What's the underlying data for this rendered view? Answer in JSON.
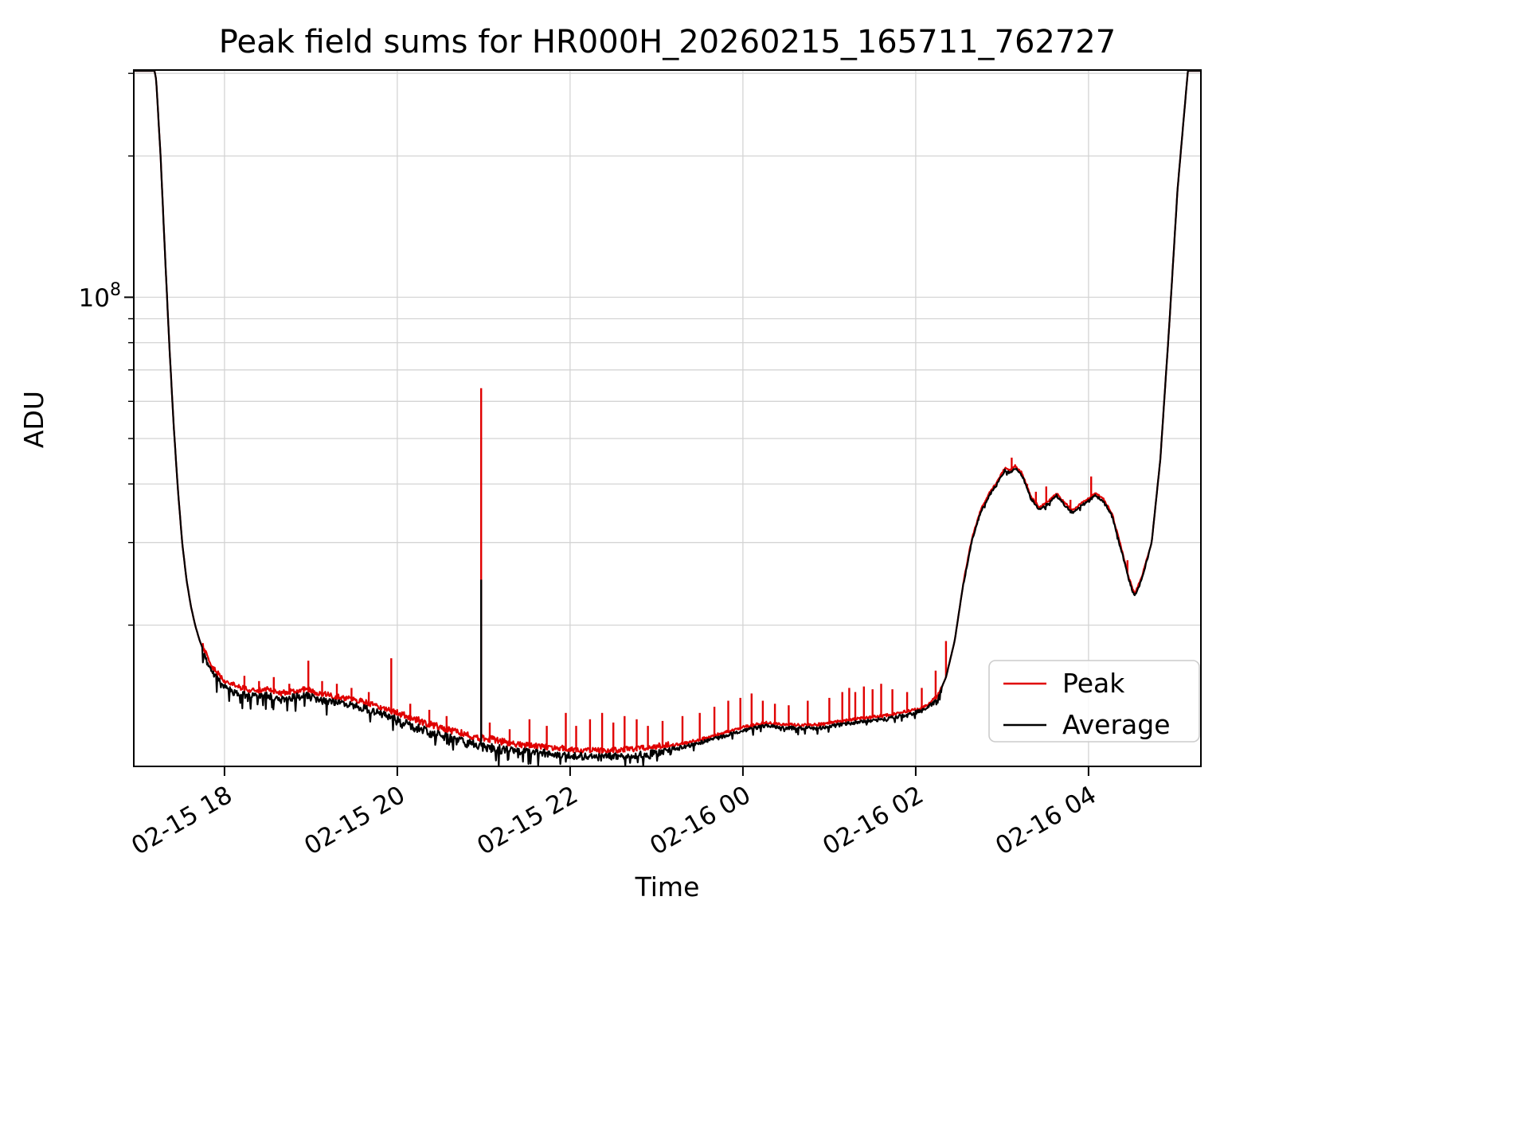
{
  "chart_data": {
    "type": "line",
    "title": "Peak field sums for HR000H_20260215_165711_762727",
    "xlabel": "Time",
    "ylabel": "ADU",
    "yscale": "log",
    "ylim": [
      10000000.0,
      305000000.0
    ],
    "t_range": [
      0,
      12.35
    ],
    "ytick": {
      "base": "10",
      "exp": "8",
      "value": 100000000.0
    },
    "xticks": [
      {
        "t": 1.05,
        "label": "02-15 18"
      },
      {
        "t": 3.05,
        "label": "02-15 20"
      },
      {
        "t": 5.05,
        "label": "02-15 22"
      },
      {
        "t": 7.05,
        "label": "02-16 00"
      },
      {
        "t": 9.05,
        "label": "02-16 02"
      },
      {
        "t": 11.05,
        "label": "02-16 04"
      }
    ],
    "y_gridlines_minor": [
      20000000.0,
      30000000.0,
      40000000.0,
      50000000.0,
      60000000.0,
      70000000.0,
      80000000.0,
      90000000.0,
      200000000.0,
      300000000.0
    ],
    "y_gridlines_major": [
      100000000.0
    ],
    "legend_position": "lower right",
    "grid": true,
    "series": [
      {
        "name": "Peak",
        "color": "#e00000"
      },
      {
        "name": "Average",
        "color": "#000000"
      }
    ],
    "average_keypoints": [
      [
        0.0,
        340000000.0
      ],
      [
        0.2,
        335000000.0
      ],
      [
        0.26,
        290000000.0
      ],
      [
        0.31,
        200000000.0
      ],
      [
        0.36,
        125000000.0
      ],
      [
        0.41,
        80000000.0
      ],
      [
        0.46,
        54000000.0
      ],
      [
        0.51,
        39000000.0
      ],
      [
        0.56,
        30000000.0
      ],
      [
        0.61,
        25000000.0
      ],
      [
        0.66,
        22000000.0
      ],
      [
        0.71,
        20000000.0
      ],
      [
        0.76,
        18600000.0
      ],
      [
        0.82,
        17400000.0
      ],
      [
        0.9,
        16200000.0
      ],
      [
        1.0,
        15300000.0
      ],
      [
        1.1,
        14800000.0
      ],
      [
        1.25,
        14500000.0
      ],
      [
        1.4,
        14300000.0
      ],
      [
        1.55,
        14400000.0
      ],
      [
        1.7,
        14100000.0
      ],
      [
        1.85,
        14300000.0
      ],
      [
        2.0,
        14400000.0
      ],
      [
        2.15,
        14100000.0
      ],
      [
        2.35,
        13900000.0
      ],
      [
        2.55,
        13700000.0
      ],
      [
        2.75,
        13400000.0
      ],
      [
        2.95,
        13000000.0
      ],
      [
        3.15,
        12600000.0
      ],
      [
        3.35,
        12200000.0
      ],
      [
        3.55,
        11900000.0
      ],
      [
        3.75,
        11600000.0
      ],
      [
        3.95,
        11350000.0
      ],
      [
        4.15,
        11200000.0
      ],
      [
        4.4,
        11000000.0
      ],
      [
        4.65,
        10900000.0
      ],
      [
        4.9,
        10800000.0
      ],
      [
        5.15,
        10700000.0
      ],
      [
        5.4,
        10650000.0
      ],
      [
        5.65,
        10700000.0
      ],
      [
        5.9,
        10800000.0
      ],
      [
        6.15,
        10950000.0
      ],
      [
        6.4,
        11150000.0
      ],
      [
        6.65,
        11450000.0
      ],
      [
        6.9,
        11800000.0
      ],
      [
        7.1,
        12100000.0
      ],
      [
        7.3,
        12300000.0
      ],
      [
        7.5,
        12200000.0
      ],
      [
        7.7,
        12150000.0
      ],
      [
        7.95,
        12200000.0
      ],
      [
        8.2,
        12400000.0
      ],
      [
        8.45,
        12600000.0
      ],
      [
        8.7,
        12750000.0
      ],
      [
        8.95,
        13000000.0
      ],
      [
        9.15,
        13300000.0
      ],
      [
        9.3,
        14000000.0
      ],
      [
        9.4,
        15500000.0
      ],
      [
        9.5,
        18500000.0
      ],
      [
        9.6,
        24500000.0
      ],
      [
        9.7,
        30500000.0
      ],
      [
        9.8,
        35000000.0
      ],
      [
        9.9,
        38000000.0
      ],
      [
        10.0,
        40500000.0
      ],
      [
        10.08,
        43000000.0
      ],
      [
        10.14,
        42500000.0
      ],
      [
        10.2,
        43500000.0
      ],
      [
        10.28,
        42000000.0
      ],
      [
        10.38,
        37500000.0
      ],
      [
        10.48,
        35500000.0
      ],
      [
        10.58,
        36500000.0
      ],
      [
        10.68,
        38000000.0
      ],
      [
        10.76,
        36500000.0
      ],
      [
        10.86,
        35000000.0
      ],
      [
        10.95,
        36000000.0
      ],
      [
        11.05,
        37000000.0
      ],
      [
        11.13,
        38000000.0
      ],
      [
        11.22,
        37000000.0
      ],
      [
        11.32,
        34500000.0
      ],
      [
        11.42,
        29500000.0
      ],
      [
        11.52,
        25000000.0
      ],
      [
        11.58,
        23200000.0
      ],
      [
        11.66,
        25000000.0
      ],
      [
        11.78,
        30000000.0
      ],
      [
        11.88,
        45000000.0
      ],
      [
        11.98,
        85000000.0
      ],
      [
        12.08,
        170000000.0
      ],
      [
        12.2,
        305000000.0
      ],
      [
        12.35,
        350000000.0
      ]
    ],
    "peak_spikes": [
      [
        1.28,
        15600000.0
      ],
      [
        1.45,
        15200000.0
      ],
      [
        1.62,
        15500000.0
      ],
      [
        1.8,
        15000000.0
      ],
      [
        2.02,
        16800000.0
      ],
      [
        2.18,
        15200000.0
      ],
      [
        2.35,
        15000000.0
      ],
      [
        2.52,
        14700000.0
      ],
      [
        2.72,
        14400000.0
      ],
      [
        2.98,
        17000000.0
      ],
      [
        3.2,
        13600000.0
      ],
      [
        3.42,
        13200000.0
      ],
      [
        3.62,
        12800000.0
      ],
      [
        4.02,
        64000000.0
      ],
      [
        4.12,
        12400000.0
      ],
      [
        4.35,
        12000000.0
      ],
      [
        4.58,
        12600000.0
      ],
      [
        4.78,
        12200000.0
      ],
      [
        5.0,
        13000000.0
      ],
      [
        5.12,
        12200000.0
      ],
      [
        5.28,
        12600000.0
      ],
      [
        5.42,
        13000000.0
      ],
      [
        5.55,
        12400000.0
      ],
      [
        5.68,
        12800000.0
      ],
      [
        5.82,
        12600000.0
      ],
      [
        5.95,
        12200000.0
      ],
      [
        6.12,
        12500000.0
      ],
      [
        6.35,
        12800000.0
      ],
      [
        6.55,
        13000000.0
      ],
      [
        6.72,
        13400000.0
      ],
      [
        6.88,
        13800000.0
      ],
      [
        7.02,
        14000000.0
      ],
      [
        7.15,
        14300000.0
      ],
      [
        7.28,
        13800000.0
      ],
      [
        7.42,
        13600000.0
      ],
      [
        7.58,
        13500000.0
      ],
      [
        7.8,
        13800000.0
      ],
      [
        8.05,
        14000000.0
      ],
      [
        8.2,
        14400000.0
      ],
      [
        8.28,
        14700000.0
      ],
      [
        8.35,
        14400000.0
      ],
      [
        8.45,
        14800000.0
      ],
      [
        8.55,
        14600000.0
      ],
      [
        8.65,
        15000000.0
      ],
      [
        8.78,
        14600000.0
      ],
      [
        8.95,
        14400000.0
      ],
      [
        9.12,
        14700000.0
      ],
      [
        9.28,
        16000000.0
      ],
      [
        9.4,
        18500000.0
      ],
      [
        10.16,
        45500000.0
      ],
      [
        10.34,
        40000000.0
      ],
      [
        10.44,
        38500000.0
      ],
      [
        10.56,
        39500000.0
      ],
      [
        10.84,
        37000000.0
      ],
      [
        11.08,
        41500000.0
      ],
      [
        11.5,
        27500000.0
      ]
    ],
    "average_spikes": [
      [
        4.02,
        25000000.0
      ]
    ],
    "noise": {
      "seed": 7,
      "segments": [
        {
          "t0": 0.8,
          "t1": 3.0,
          "amp": 0.035
        },
        {
          "t0": 3.0,
          "t1": 4.3,
          "amp": 0.045
        },
        {
          "t0": 4.3,
          "t1": 6.2,
          "amp": 0.035
        },
        {
          "t0": 6.2,
          "t1": 9.35,
          "amp": 0.018
        },
        {
          "t0": 9.6,
          "t1": 11.75,
          "amp": 0.012
        }
      ],
      "peak_up_factor": 0.8,
      "big_dip_prob": 0.09,
      "big_dip_mult": 2.4
    }
  }
}
